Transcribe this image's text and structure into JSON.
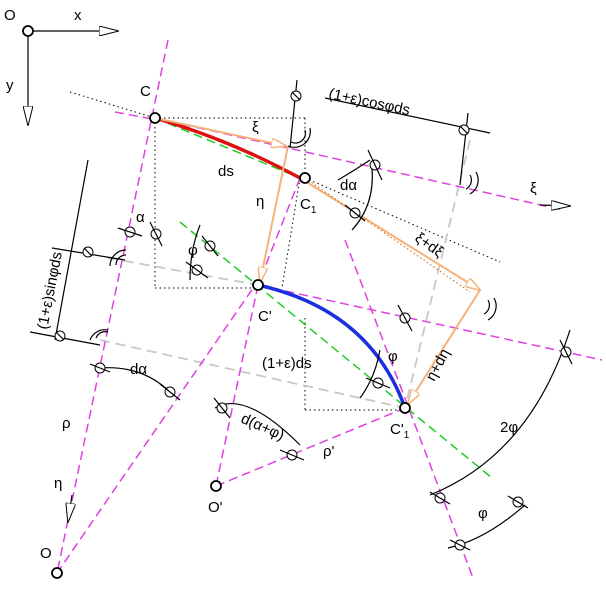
{
  "axes": {
    "origin": "O",
    "x": "x",
    "y": "y"
  },
  "points": {
    "C": "C",
    "C1_main": "C",
    "C1_sub": "1",
    "Cp": "C'",
    "Cp1_main": "C'",
    "Cp1_sub": "1",
    "O": "O",
    "Op": "O'"
  },
  "labels": {
    "ds": "ds",
    "xi_top": "ξ",
    "xi_axis": "ξ",
    "eta_top": "η",
    "eta_bottom": "η",
    "dalpha_top": "dα",
    "dalpha_left": "dα",
    "alpha": "α",
    "phi_left": "φ",
    "phi_right": "φ",
    "phi_bottom": "φ",
    "two_phi": "2φ",
    "rho": "ρ",
    "rho_p": "ρ'",
    "xi_dxi": "ξ+dξ",
    "eta_deta": "η+dη",
    "one_eps_ds": "(1+ε)ds",
    "d_alpha_phi": "d(α+φ)",
    "cos_dim": "(1+ε)cosφds",
    "sin_dim": "(1+ε)sinφds"
  },
  "colors": {
    "pink": "#e040e0",
    "green": "#22cc22",
    "red": "#dd1111",
    "blue": "#1a2fe0",
    "orange": "#f5b27a",
    "grey": "#c8c8c8"
  }
}
